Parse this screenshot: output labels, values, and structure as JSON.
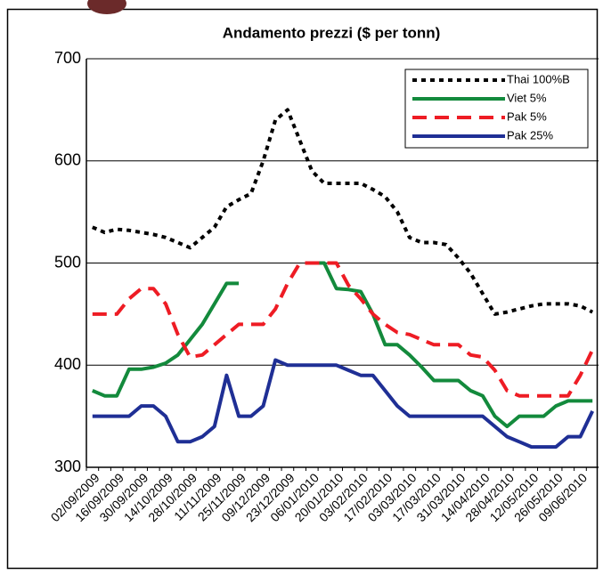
{
  "chart_data": {
    "type": "line",
    "title": "Andamento prezzi ($ per tonn)",
    "categories": [
      "02/09/2009",
      null,
      "16/09/2009",
      null,
      "30/09/2009",
      null,
      "14/10/2009",
      null,
      "28/10/2009",
      null,
      "11/11/2009",
      null,
      "25/11/2009",
      null,
      "09/12/2009",
      null,
      "23/12/2009",
      null,
      "06/01/2010",
      null,
      "20/01/2010",
      null,
      "03/02/2010",
      null,
      "17/02/2010",
      null,
      "03/03/2010",
      null,
      "17/03/2010",
      null,
      "31/03/2010",
      null,
      "14/04/2010",
      null,
      "28/04/2010",
      null,
      "12/05/2010",
      null,
      "26/05/2010",
      null,
      "09/06/2010",
      null
    ],
    "series": [
      {
        "name": "Thai 100%B",
        "color": "#000000",
        "style": "dotted",
        "values": [
          535,
          530,
          533,
          532,
          530,
          528,
          525,
          520,
          515,
          525,
          535,
          555,
          562,
          568,
          600,
          640,
          650,
          620,
          590,
          578,
          578,
          578,
          578,
          572,
          565,
          550,
          525,
          520,
          520,
          518,
          505,
          490,
          470,
          450,
          452,
          455,
          458,
          460,
          460,
          460,
          458,
          452
        ]
      },
      {
        "name": "Viet 5%",
        "color": "#138a3c",
        "style": "solid",
        "values": [
          375,
          370,
          370,
          396,
          396,
          398,
          402,
          410,
          425,
          440,
          460,
          480,
          480,
          null,
          null,
          null,
          null,
          null,
          500,
          500,
          475,
          474,
          472,
          450,
          420,
          420,
          410,
          398,
          385,
          385,
          385,
          375,
          370,
          350,
          340,
          350,
          350,
          350,
          360,
          365,
          365,
          365
        ]
      },
      {
        "name": "Pak 5%",
        "color": "#ee1c24",
        "style": "dashed",
        "values": [
          450,
          450,
          450,
          465,
          475,
          475,
          460,
          430,
          408,
          410,
          420,
          430,
          440,
          440,
          440,
          455,
          480,
          500,
          500,
          500,
          500,
          478,
          465,
          450,
          440,
          432,
          430,
          425,
          420,
          420,
          420,
          410,
          408,
          395,
          375,
          370,
          370,
          370,
          370,
          370,
          390,
          415
        ]
      },
      {
        "name": "Pak 25%",
        "color": "#1f2f95",
        "style": "solid",
        "values": [
          350,
          350,
          350,
          350,
          360,
          360,
          350,
          325,
          325,
          330,
          340,
          390,
          350,
          350,
          360,
          405,
          400,
          400,
          400,
          400,
          400,
          395,
          390,
          390,
          375,
          360,
          350,
          350,
          350,
          350,
          350,
          350,
          350,
          340,
          330,
          325,
          320,
          320,
          320,
          330,
          330,
          355
        ]
      }
    ],
    "ylim": [
      300,
      700
    ],
    "yticks": [
      300,
      400,
      500,
      600,
      700
    ],
    "grid": true,
    "legend": "upper right"
  }
}
